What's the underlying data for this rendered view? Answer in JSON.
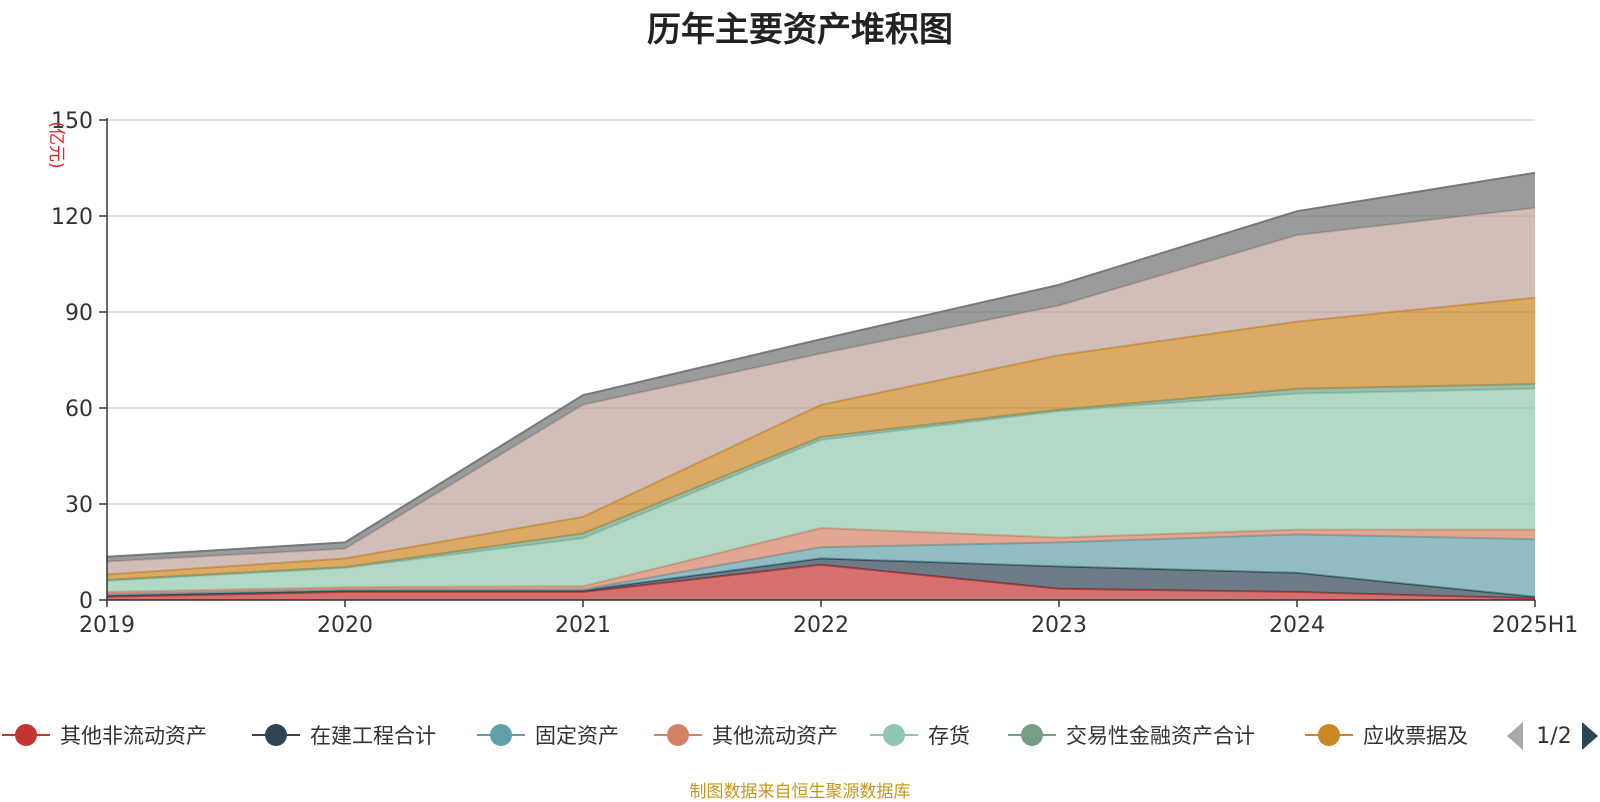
{
  "chart_data": {
    "type": "area",
    "stacked": true,
    "title": "历年主要资产堆积图",
    "unit": "(亿元)",
    "x": [
      "2019",
      "2020",
      "2021",
      "2022",
      "2023",
      "2024",
      "2025H1"
    ],
    "ylim": [
      0,
      150
    ],
    "yticks": [
      0,
      30,
      60,
      90,
      120,
      150
    ],
    "grid": true,
    "legend_position": "bottom",
    "series": [
      {
        "name": "其他非流动资产",
        "color": "#c23531",
        "values": [
          1.0,
          2.5,
          2.5,
          11.0,
          3.5,
          2.5,
          0.5
        ]
      },
      {
        "name": "在建工程合计",
        "color": "#2f4554",
        "values": [
          0.5,
          0.5,
          0.5,
          2.0,
          7.0,
          6.0,
          0.5
        ]
      },
      {
        "name": "固定资产",
        "color": "#61a0a8",
        "values": [
          0.3,
          0.3,
          0.3,
          3.5,
          7.5,
          12.0,
          18.0
        ]
      },
      {
        "name": "其他流动资产",
        "color": "#d48265",
        "values": [
          0.7,
          0.7,
          1.0,
          6.0,
          1.5,
          1.5,
          3.0
        ]
      },
      {
        "name": "存货",
        "color": "#91c7ae",
        "values": [
          3.5,
          6.0,
          15.0,
          27.5,
          39.5,
          42.5,
          44.0
        ]
      },
      {
        "name": "交易性金融资产合计",
        "color": "#749f83",
        "values": [
          0.3,
          0.3,
          1.5,
          1.0,
          0.5,
          1.5,
          1.5
        ]
      },
      {
        "name": "应收票据及",
        "color": "#ca8622",
        "values": [
          1.7,
          2.7,
          5.2,
          10.0,
          17.0,
          21.0,
          27.0
        ]
      },
      {
        "name": "",
        "color": "#bda29a",
        "values": [
          4.0,
          3.0,
          35.0,
          16.0,
          15.5,
          27.0,
          28.0
        ]
      },
      {
        "name": "",
        "color": "#6e7074",
        "values": [
          1.5,
          2.0,
          3.0,
          4.5,
          6.5,
          7.5,
          11.0
        ]
      }
    ],
    "legend_page": "1/2"
  },
  "source_note": "制图数据来自恒生聚源数据库"
}
